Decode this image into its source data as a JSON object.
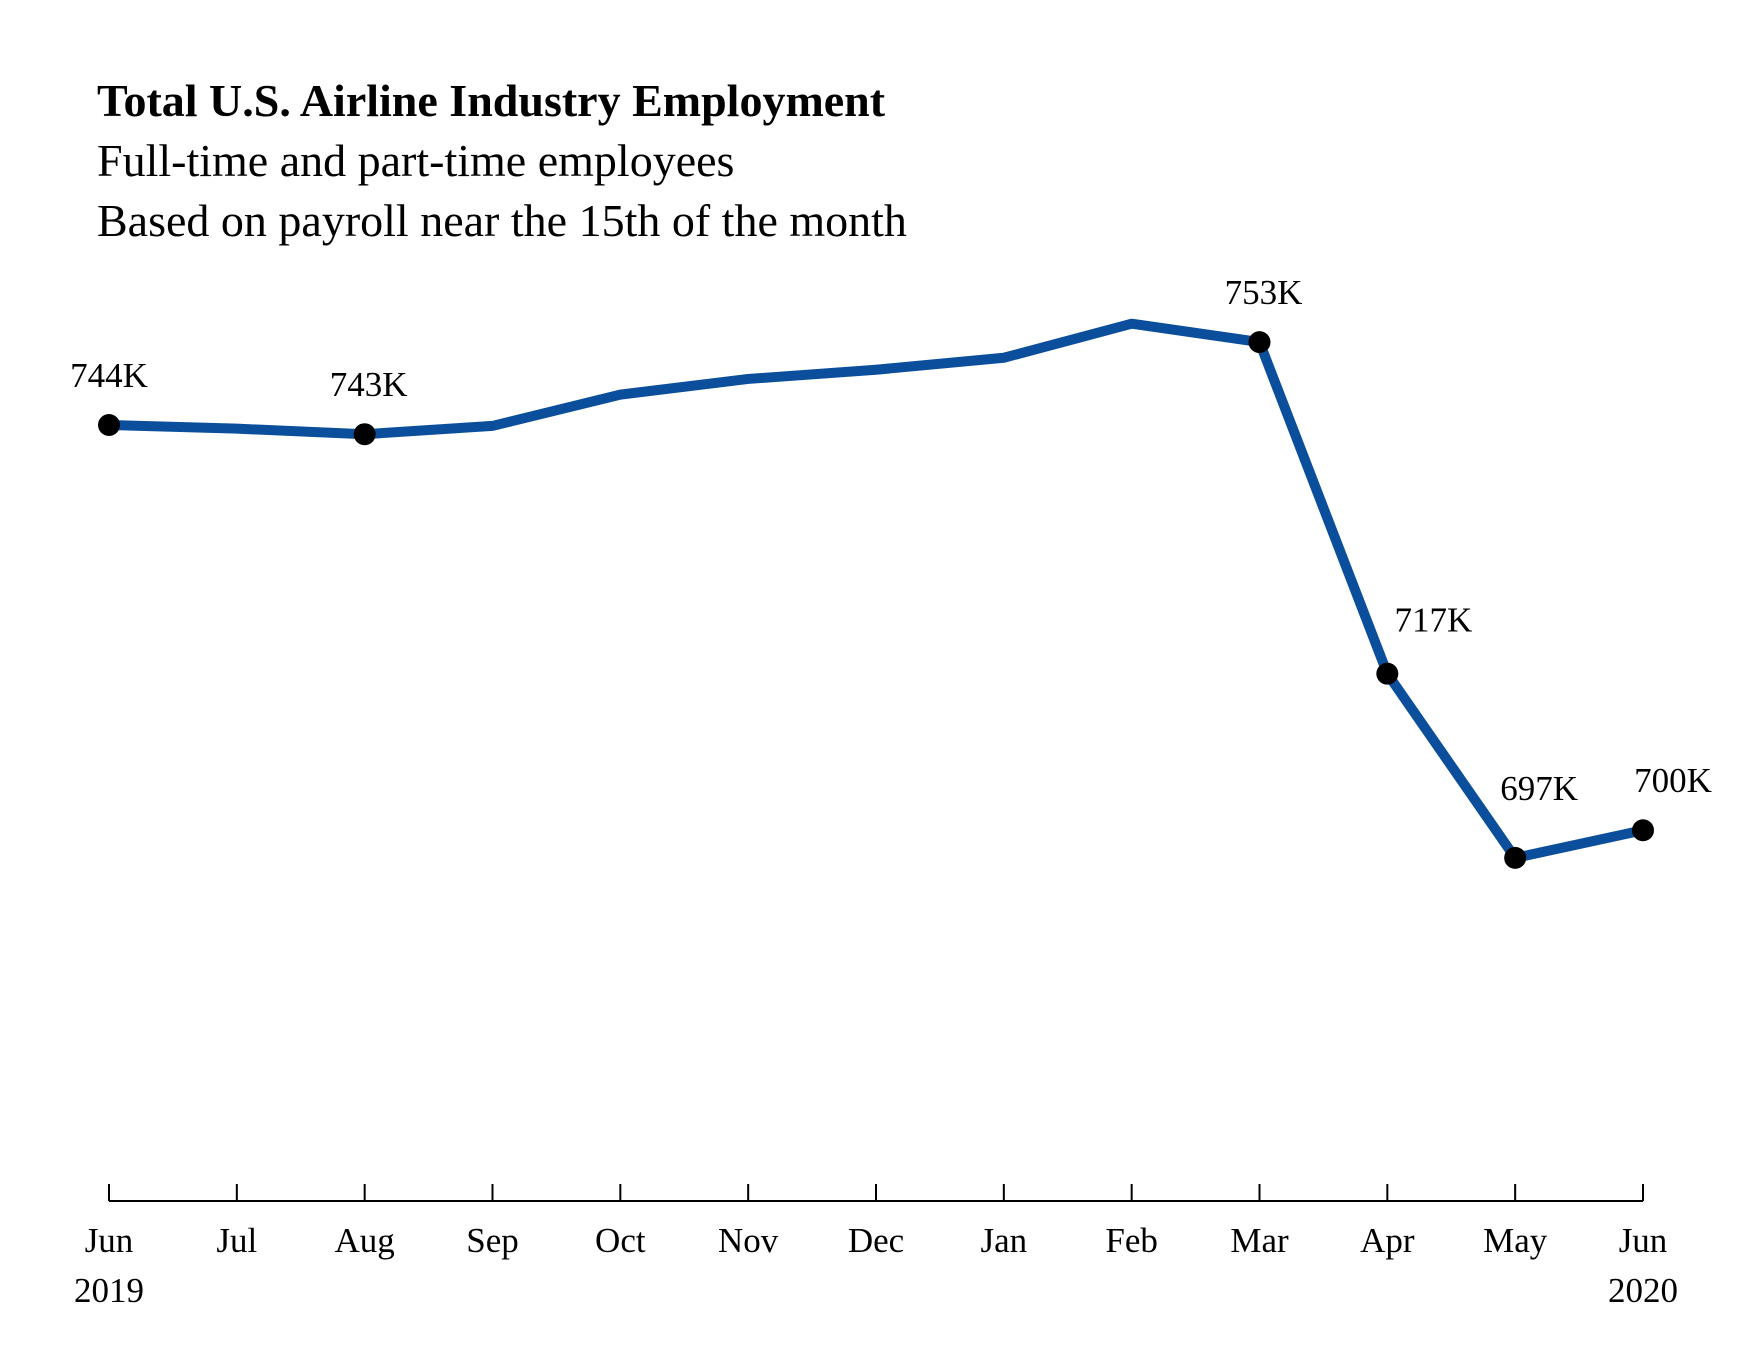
{
  "chart_data": {
    "type": "line",
    "title": "Total U.S. Airline Industry Employment",
    "subtitle": [
      "Full-time and part-time employees",
      "Based on payroll near the 15th of the month"
    ],
    "xlabel": "",
    "ylabel": "",
    "categories": [
      "Jun",
      "Jul",
      "Aug",
      "Sep",
      "Oct",
      "Nov",
      "Dec",
      "Jan",
      "Feb",
      "Mar",
      "Apr",
      "May",
      "Jun"
    ],
    "year_labels": [
      {
        "index": 0,
        "label": "2019"
      },
      {
        "index": 12,
        "label": "2020"
      }
    ],
    "series": [
      {
        "values": [
          744,
          743.6,
          743,
          743.9,
          747.3,
          749,
          750,
          751.3,
          755,
          753,
          717,
          697,
          700
        ]
      }
    ],
    "unit": "thousands",
    "data_labels": [
      {
        "index": 0,
        "label": "744K"
      },
      {
        "index": 2,
        "label": "743K"
      },
      {
        "index": 9,
        "label": "753K"
      },
      {
        "index": 10,
        "label": "717K"
      },
      {
        "index": 11,
        "label": "697K"
      },
      {
        "index": 12,
        "label": "700K"
      }
    ],
    "ylim": [
      660,
      770
    ],
    "grid": false,
    "y_axis_visible": false,
    "legend": "none",
    "colors": {
      "line": "#0b4f9c",
      "marker": "#000000",
      "axis": "#000000"
    }
  }
}
